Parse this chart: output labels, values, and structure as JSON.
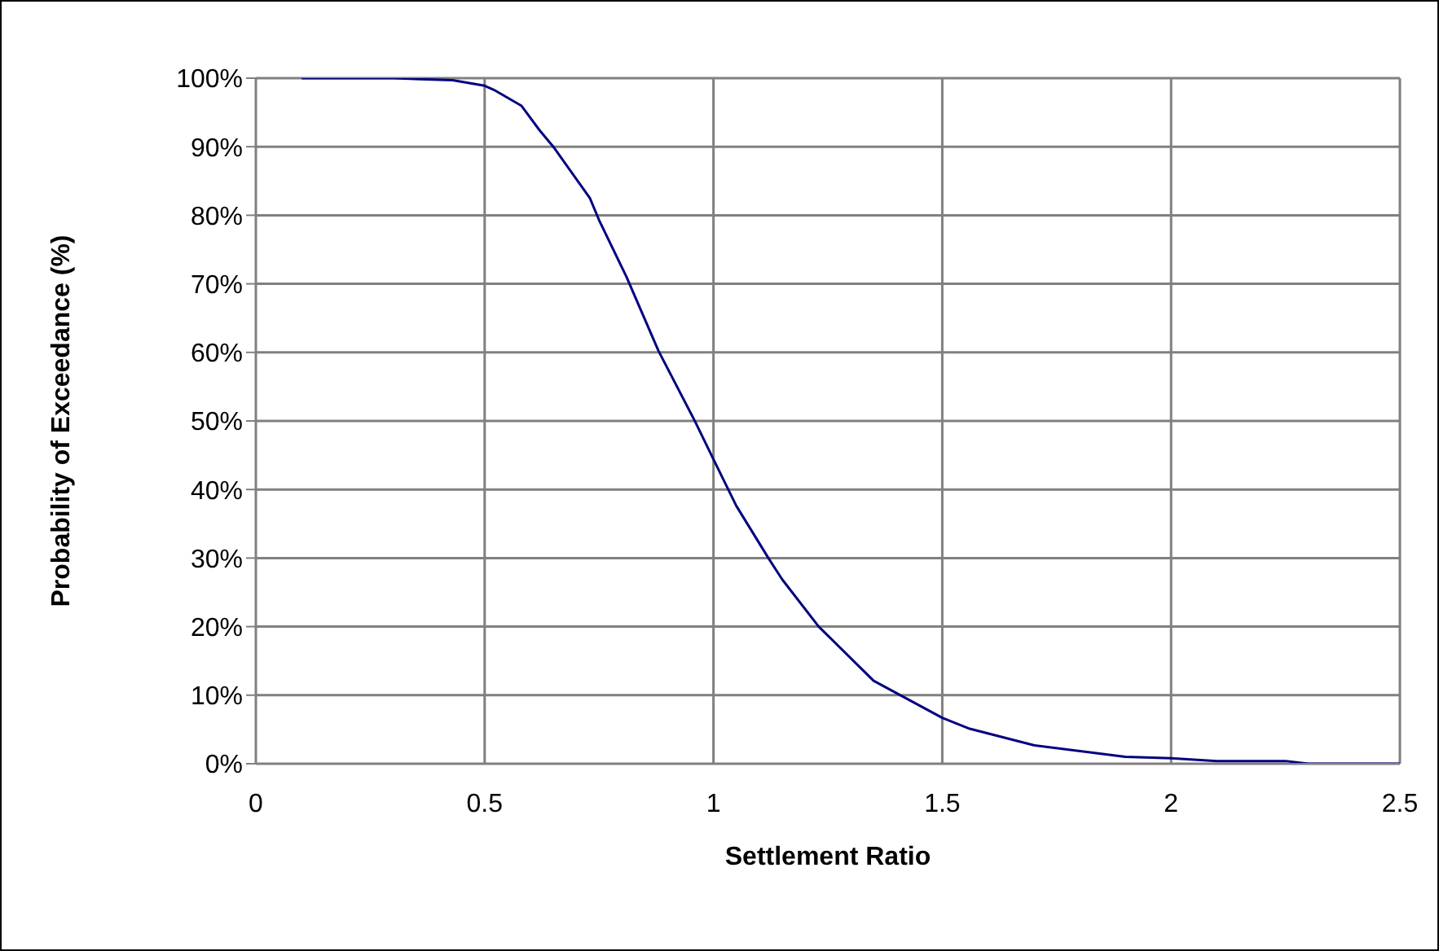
{
  "chart_data": {
    "type": "line",
    "xlabel": "Settlement Ratio",
    "ylabel": "Probability of Exceedance (%)",
    "series": [
      {
        "color": "#000080",
        "x": [
          0.1,
          0.3,
          0.43,
          0.5,
          0.52,
          0.58,
          0.62,
          0.65,
          0.73,
          0.75,
          0.81,
          0.88,
          0.96,
          1.0,
          1.05,
          1.12,
          1.15,
          1.23,
          1.35,
          1.5,
          1.56,
          1.7,
          1.9,
          2.0,
          2.1,
          2.25,
          2.3,
          2.5
        ],
        "values": [
          100,
          100,
          99.7,
          98.9,
          98.3,
          96,
          92.4,
          90,
          82.5,
          79.3,
          71,
          60.2,
          49.9,
          44.4,
          37.6,
          30,
          26.9,
          20,
          12.1,
          6.7,
          5.1,
          2.7,
          1.0,
          0.8,
          0.4,
          0.4,
          0,
          0
        ]
      }
    ],
    "xlim": [
      0,
      2.5
    ],
    "xticks": [
      0,
      0.5,
      1,
      1.5,
      2,
      2.5
    ],
    "ylim": [
      0,
      100
    ],
    "yticks": [
      {
        "value": 0,
        "label": "0%"
      },
      {
        "value": 10,
        "label": "10%"
      },
      {
        "value": 20,
        "label": "20%"
      },
      {
        "value": 30,
        "label": "30%"
      },
      {
        "value": 40,
        "label": "40%"
      },
      {
        "value": 50,
        "label": "50%"
      },
      {
        "value": 60,
        "label": "60%"
      },
      {
        "value": 70,
        "label": "70%"
      },
      {
        "value": 80,
        "label": "80%"
      },
      {
        "value": 90,
        "label": "90%"
      },
      {
        "value": 100,
        "label": "100%"
      }
    ],
    "grid": true,
    "legend": false,
    "marker": "none",
    "line_style": "solid"
  }
}
